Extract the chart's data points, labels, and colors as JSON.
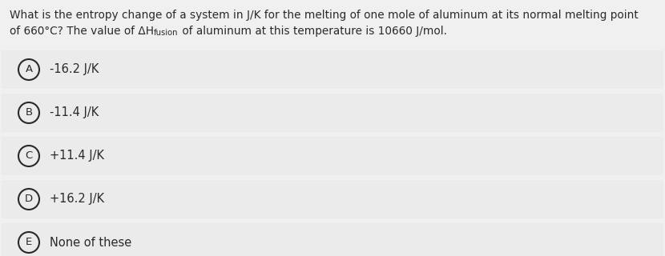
{
  "background_color": "#f0f0f0",
  "question_line1": "What is the entropy change of a system in J/K for the melting of one mole of aluminum at its normal melting point",
  "question_line2_pre": "of 660°C? The value of ΔH",
  "question_line2_sub": "fusion",
  "question_line2_post": " of aluminum at this temperature is 10660 J/mol.",
  "options": [
    {
      "letter": "A",
      "text": "-16.2 J/K"
    },
    {
      "letter": "B",
      "text": "-11.4 J/K"
    },
    {
      "letter": "C",
      "text": "+11.4 J/K"
    },
    {
      "letter": "D",
      "text": "+16.2 J/K"
    },
    {
      "letter": "E",
      "text": "None of these"
    }
  ],
  "bg_color": "#f0f0f0",
  "option_bg_color": "#ebebeb",
  "text_color": "#2a2a2a",
  "circle_edge_color": "#2a2a2a",
  "q_fontsize": 9.8,
  "sub_fontsize": 7.2,
  "opt_fontsize": 10.5,
  "letter_fontsize": 9.5,
  "fig_width": 8.3,
  "fig_height": 3.2,
  "dpi": 100
}
